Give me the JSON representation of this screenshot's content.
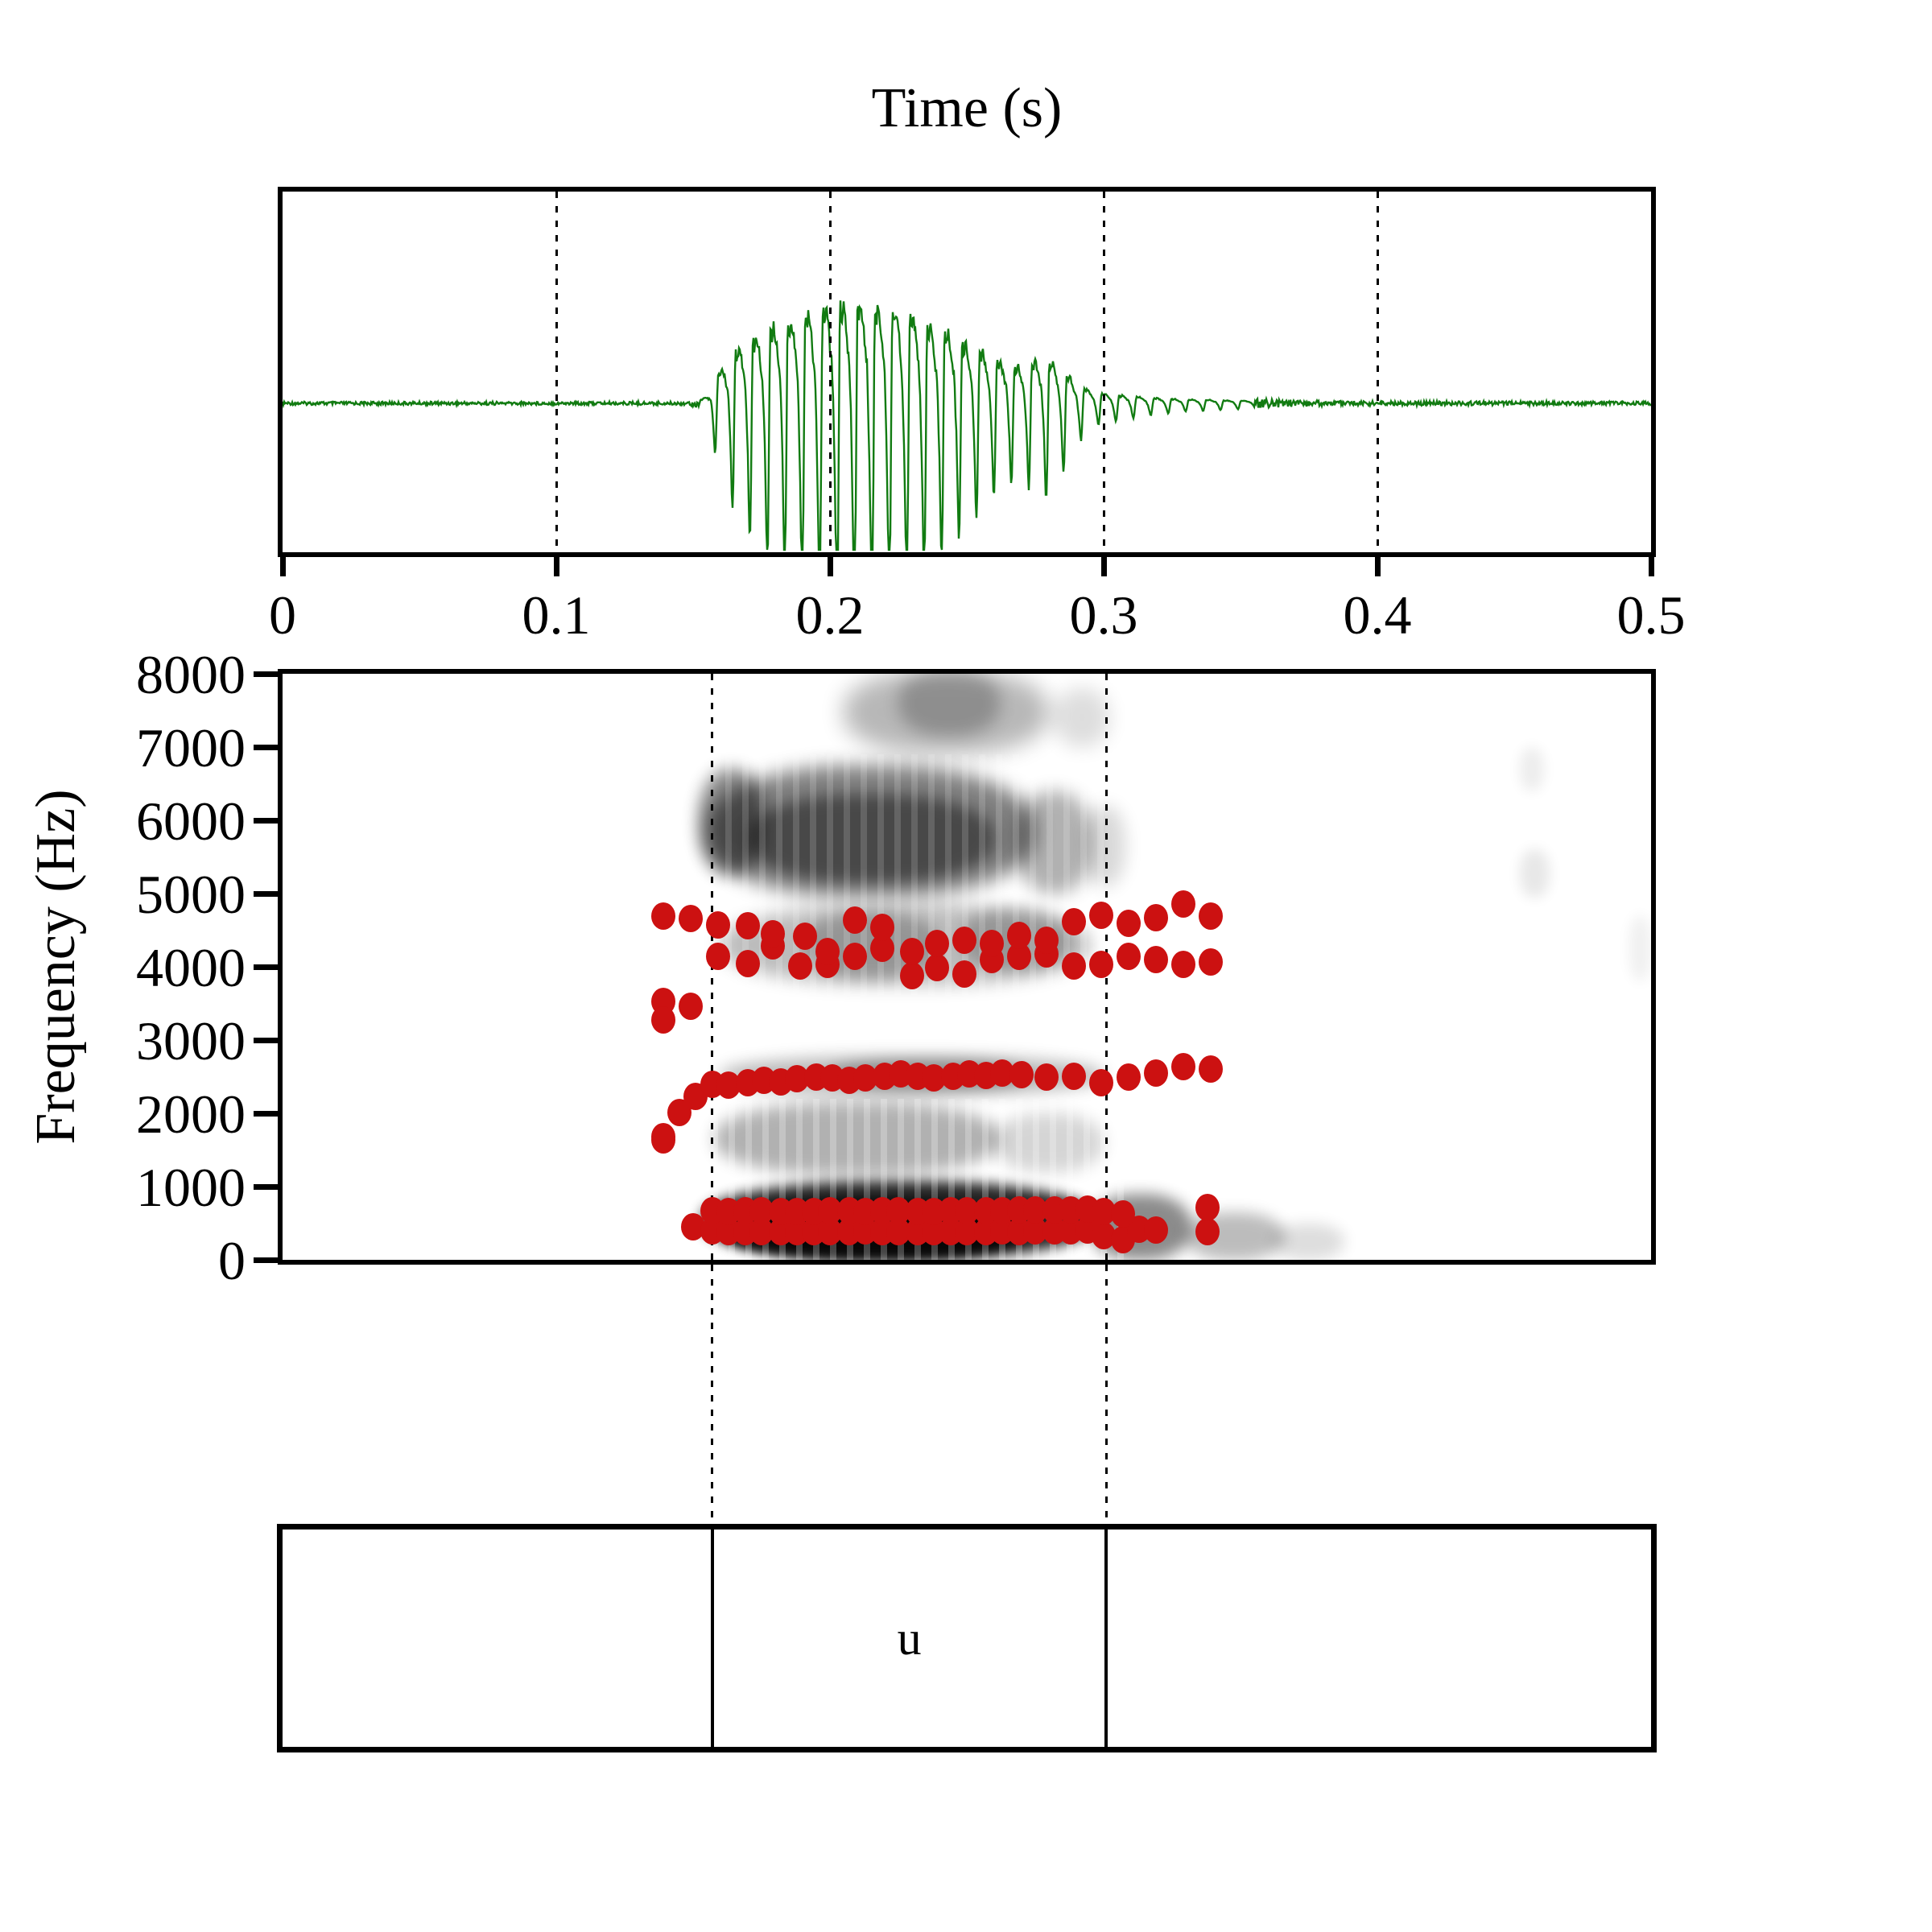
{
  "title": "Time (s)",
  "axes": {
    "x_tick_labels": [
      "0",
      "0.1",
      "0.2",
      "0.3",
      "0.4",
      "0.5"
    ],
    "x_tick_values": [
      0,
      0.1,
      0.2,
      0.3,
      0.4,
      0.5
    ],
    "x_range": [
      0,
      0.5
    ],
    "y_tick_labels": [
      "0",
      "1000",
      "2000",
      "3000",
      "4000",
      "5000",
      "6000",
      "7000",
      "8000"
    ],
    "y_tick_values": [
      0,
      1000,
      2000,
      3000,
      4000,
      5000,
      6000,
      7000,
      8000
    ],
    "y_range": [
      0,
      8000
    ],
    "ylabel": "Frequency (Hz)",
    "waveform_gridlines": [
      0.1,
      0.2,
      0.3,
      0.4
    ]
  },
  "colors": {
    "waveform": "#117b11",
    "formant_dot": "#cc1111",
    "axis": "#000000",
    "background": "#ffffff"
  },
  "chart_data": [
    {
      "type": "line",
      "name": "waveform",
      "title": "Time (s)",
      "x_range": [
        0,
        0.5
      ],
      "x_ticks": [
        0,
        0.1,
        0.2,
        0.3,
        0.4,
        0.5
      ],
      "color": "#117b11",
      "f0_hz": 157,
      "voicing_interval_s": [
        0.152,
        0.3
      ],
      "envelope_rel": [
        [
          0.0,
          0.008
        ],
        [
          0.148,
          0.008
        ],
        [
          0.152,
          0.023
        ],
        [
          0.1555,
          0.076
        ],
        [
          0.158,
          0.229
        ],
        [
          0.162,
          0.401
        ],
        [
          0.168,
          0.565
        ],
        [
          0.175,
          0.706
        ],
        [
          0.185,
          0.821
        ],
        [
          0.195,
          0.939
        ],
        [
          0.205,
          1.0
        ],
        [
          0.215,
          0.977
        ],
        [
          0.225,
          0.908
        ],
        [
          0.235,
          0.786
        ],
        [
          0.245,
          0.656
        ],
        [
          0.255,
          0.504
        ],
        [
          0.262,
          0.405
        ],
        [
          0.268,
          0.359
        ],
        [
          0.273,
          0.389
        ],
        [
          0.278,
          0.45
        ],
        [
          0.284,
          0.351
        ],
        [
          0.29,
          0.191
        ],
        [
          0.296,
          0.107
        ],
        [
          0.305,
          0.08
        ],
        [
          0.315,
          0.057
        ],
        [
          0.33,
          0.038
        ],
        [
          0.355,
          0.023
        ],
        [
          0.385,
          0.011
        ],
        [
          0.5,
          0.008
        ]
      ]
    },
    {
      "type": "heatmap",
      "name": "spectrogram",
      "ylabel": "Frequency (Hz)",
      "y_range": [
        0,
        8000
      ],
      "x_range": [
        0,
        0.5
      ],
      "gray_bands": [
        {
          "t": [
            0.205,
            0.28
          ],
          "f": [
            6900,
            8050
          ],
          "alpha": 0.28,
          "blur": 14
        },
        {
          "t": [
            0.225,
            0.262
          ],
          "f": [
            7150,
            8050
          ],
          "alpha": 0.22,
          "blur": 10
        },
        {
          "t": [
            0.282,
            0.302
          ],
          "f": [
            7000,
            7800
          ],
          "alpha": 0.13,
          "blur": 12
        },
        {
          "t": [
            0.155,
            0.275
          ],
          "f": [
            4950,
            6750
          ],
          "alpha": 0.5,
          "blur": 12
        },
        {
          "t": [
            0.152,
            0.176
          ],
          "f": [
            5250,
            6700
          ],
          "alpha": 0.45,
          "blur": 10
        },
        {
          "t": [
            0.17,
            0.26
          ],
          "f": [
            5150,
            6350
          ],
          "alpha": 0.42,
          "blur": 9
        },
        {
          "t": [
            0.268,
            0.296
          ],
          "f": [
            5000,
            6400
          ],
          "alpha": 0.3,
          "blur": 11
        },
        {
          "t": [
            0.293,
            0.308
          ],
          "f": [
            5100,
            6200
          ],
          "alpha": 0.15,
          "blur": 11
        },
        {
          "t": [
            0.16,
            0.295
          ],
          "f": [
            3750,
            4850
          ],
          "alpha": 0.26,
          "blur": 11
        },
        {
          "t": [
            0.19,
            0.24
          ],
          "f": [
            3850,
            4750
          ],
          "alpha": 0.2,
          "blur": 9
        },
        {
          "t": [
            0.248,
            0.288
          ],
          "f": [
            3950,
            4800
          ],
          "alpha": 0.2,
          "blur": 9
        },
        {
          "t": [
            0.16,
            0.3
          ],
          "f": [
            2250,
            2780
          ],
          "alpha": 0.28,
          "blur": 10
        },
        {
          "t": [
            0.2,
            0.272
          ],
          "f": [
            2300,
            2750
          ],
          "alpha": 0.22,
          "blur": 8
        },
        {
          "t": [
            0.158,
            0.262
          ],
          "f": [
            1150,
            2150
          ],
          "alpha": 0.3,
          "blur": 10
        },
        {
          "t": [
            0.26,
            0.3
          ],
          "f": [
            1200,
            2000
          ],
          "alpha": 0.16,
          "blur": 10
        },
        {
          "t": [
            0.153,
            0.297
          ],
          "f": [
            0,
            1080
          ],
          "alpha": 0.85,
          "blur": 8
        },
        {
          "t": [
            0.16,
            0.272
          ],
          "f": [
            0,
            820
          ],
          "alpha": 0.8,
          "blur": 6
        },
        {
          "t": [
            0.295,
            0.332
          ],
          "f": [
            0,
            900
          ],
          "alpha": 0.45,
          "blur": 9
        },
        {
          "t": [
            0.33,
            0.366
          ],
          "f": [
            0,
            650
          ],
          "alpha": 0.26,
          "blur": 9
        },
        {
          "t": [
            0.362,
            0.388
          ],
          "f": [
            0,
            500
          ],
          "alpha": 0.13,
          "blur": 9
        },
        {
          "t": [
            0.452,
            0.463
          ],
          "f": [
            4950,
            5600
          ],
          "alpha": 0.09,
          "blur": 8
        },
        {
          "t": [
            0.452,
            0.461
          ],
          "f": [
            6400,
            7000
          ],
          "alpha": 0.07,
          "blur": 8
        },
        {
          "t": [
            0.492,
            0.5
          ],
          "f": [
            3800,
            4700
          ],
          "alpha": 0.06,
          "blur": 8
        }
      ],
      "marker_color": "#cc1111",
      "formant_tracks": {
        "F1": [
          [
            0.15,
            451
          ],
          [
            0.157,
            396
          ],
          [
            0.163,
            385
          ],
          [
            0.169,
            380
          ],
          [
            0.175,
            385
          ],
          [
            0.182,
            390
          ],
          [
            0.188,
            385
          ],
          [
            0.194,
            380
          ],
          [
            0.2,
            385
          ],
          [
            0.207,
            390
          ],
          [
            0.213,
            392
          ],
          [
            0.219,
            388
          ],
          [
            0.225,
            385
          ],
          [
            0.232,
            380
          ],
          [
            0.238,
            385
          ],
          [
            0.244,
            390
          ],
          [
            0.25,
            385
          ],
          [
            0.257,
            390
          ],
          [
            0.263,
            394
          ],
          [
            0.269,
            390
          ],
          [
            0.275,
            396
          ],
          [
            0.282,
            400
          ],
          [
            0.288,
            396
          ],
          [
            0.294,
            404
          ],
          [
            0.3,
            330
          ],
          [
            0.307,
            275
          ],
          [
            0.313,
            418
          ],
          [
            0.319,
            407
          ],
          [
            0.338,
            385
          ]
        ],
        "F2": [
          [
            0.139,
            1681
          ],
          [
            0.157,
            670
          ],
          [
            0.163,
            662
          ],
          [
            0.169,
            666
          ],
          [
            0.175,
            670
          ],
          [
            0.182,
            664
          ],
          [
            0.188,
            660
          ],
          [
            0.194,
            664
          ],
          [
            0.2,
            670
          ],
          [
            0.207,
            666
          ],
          [
            0.213,
            662
          ],
          [
            0.219,
            666
          ],
          [
            0.225,
            670
          ],
          [
            0.232,
            664
          ],
          [
            0.238,
            660
          ],
          [
            0.244,
            666
          ],
          [
            0.25,
            670
          ],
          [
            0.257,
            674
          ],
          [
            0.263,
            670
          ],
          [
            0.269,
            676
          ],
          [
            0.275,
            680
          ],
          [
            0.282,
            676
          ],
          [
            0.288,
            682
          ],
          [
            0.294,
            688
          ],
          [
            0.3,
            659
          ],
          [
            0.307,
            626
          ],
          [
            0.338,
            714
          ]
        ],
        "F3": [
          [
            0.139,
            1640
          ],
          [
            0.145,
            2011
          ],
          [
            0.151,
            2231
          ],
          [
            0.157,
            2400
          ],
          [
            0.163,
            2380
          ],
          [
            0.17,
            2420
          ],
          [
            0.176,
            2450
          ],
          [
            0.182,
            2430
          ],
          [
            0.188,
            2470
          ],
          [
            0.195,
            2500
          ],
          [
            0.201,
            2480
          ],
          [
            0.207,
            2450
          ],
          [
            0.213,
            2480
          ],
          [
            0.22,
            2510
          ],
          [
            0.226,
            2540
          ],
          [
            0.232,
            2510
          ],
          [
            0.238,
            2480
          ],
          [
            0.245,
            2510
          ],
          [
            0.251,
            2540
          ],
          [
            0.257,
            2520
          ],
          [
            0.263,
            2550
          ],
          [
            0.27,
            2530
          ],
          [
            0.279,
            2495
          ],
          [
            0.289,
            2506
          ],
          [
            0.299,
            2418
          ],
          [
            0.309,
            2495
          ],
          [
            0.319,
            2550
          ],
          [
            0.329,
            2638
          ],
          [
            0.339,
            2605
          ]
        ],
        "F4": [
          [
            0.159,
            4143
          ],
          [
            0.17,
            4044
          ],
          [
            0.179,
            4286
          ],
          [
            0.189,
            4011
          ],
          [
            0.199,
            4033
          ],
          [
            0.209,
            4143
          ],
          [
            0.219,
            4253
          ],
          [
            0.23,
            3880
          ],
          [
            0.239,
            3990
          ],
          [
            0.249,
            3902
          ],
          [
            0.259,
            4099
          ],
          [
            0.269,
            4143
          ],
          [
            0.279,
            4176
          ],
          [
            0.289,
            4011
          ],
          [
            0.299,
            4033
          ],
          [
            0.309,
            4143
          ],
          [
            0.319,
            4099
          ],
          [
            0.329,
            4033
          ],
          [
            0.339,
            4066
          ]
        ],
        "F5": [
          [
            0.139,
            4693
          ],
          [
            0.149,
            4660
          ],
          [
            0.159,
            4572
          ],
          [
            0.17,
            4561
          ],
          [
            0.179,
            4451
          ],
          [
            0.191,
            4418
          ],
          [
            0.199,
            4209
          ],
          [
            0.209,
            4638
          ],
          [
            0.219,
            4539
          ],
          [
            0.23,
            4209
          ],
          [
            0.239,
            4319
          ],
          [
            0.249,
            4363
          ],
          [
            0.259,
            4319
          ],
          [
            0.269,
            4429
          ],
          [
            0.279,
            4363
          ],
          [
            0.289,
            4616
          ],
          [
            0.299,
            4704
          ],
          [
            0.309,
            4594
          ],
          [
            0.319,
            4671
          ],
          [
            0.329,
            4858
          ],
          [
            0.339,
            4693
          ]
        ],
        "extra": [
          [
            0.139,
            3528
          ],
          [
            0.139,
            3275
          ],
          [
            0.149,
            3462
          ]
        ]
      }
    },
    {
      "type": "table",
      "name": "textgrid",
      "intervals": [
        {
          "xmin": 0,
          "xmax": 0.157,
          "text": ""
        },
        {
          "xmin": 0.157,
          "xmax": 0.301,
          "text": "u"
        },
        {
          "xmin": 0.301,
          "xmax": 0.5,
          "text": ""
        }
      ]
    }
  ]
}
